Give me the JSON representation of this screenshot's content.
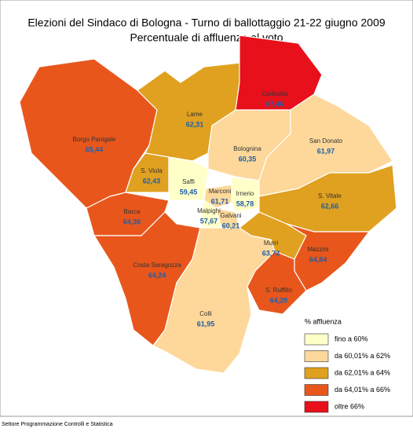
{
  "title": "Elezioni del Sindaco di Bologna - Turno di ballottaggio 21-22 giugno 2009",
  "subtitle": "Percentuale di affluenza al voto",
  "regions": [
    {
      "name": "Borgo Panigale",
      "value": "65,44",
      "color": "#e8561c"
    },
    {
      "name": "Lame",
      "value": "62,31",
      "color": "#e0a020"
    },
    {
      "name": "Corticella",
      "value": "67,46",
      "color": "#e8101a"
    },
    {
      "name": "Bolognina",
      "value": "60,35",
      "color": "#fdd89a"
    },
    {
      "name": "San Donato",
      "value": "61,97",
      "color": "#fdd89a"
    },
    {
      "name": "S. Viola",
      "value": "62,43",
      "color": "#e0a020"
    },
    {
      "name": "Saffi",
      "value": "59,45",
      "color": "#ffffc8"
    },
    {
      "name": "Marconi",
      "value": "61,71",
      "color": "#fdd89a"
    },
    {
      "name": "Irnerio",
      "value": "58,78",
      "color": "#ffffc8"
    },
    {
      "name": "Malpighi",
      "value": "57,67",
      "color": "#ffffc8"
    },
    {
      "name": "Galvani",
      "value": "60,21",
      "color": "#fdd89a"
    },
    {
      "name": "S. Vitale",
      "value": "62,66",
      "color": "#e0a020"
    },
    {
      "name": "Barca",
      "value": "64,36",
      "color": "#e8561c"
    },
    {
      "name": "Costa Saragozza",
      "value": "64,24",
      "color": "#e8561c"
    },
    {
      "name": "Colli",
      "value": "61,95",
      "color": "#fdd89a"
    },
    {
      "name": "Murri",
      "value": "63,73",
      "color": "#e0a020"
    },
    {
      "name": "Mazzini",
      "value": "64,84",
      "color": "#e8561c"
    },
    {
      "name": "S. Ruffillo",
      "value": "64,29",
      "color": "#e8561c"
    }
  ],
  "legend": {
    "title": "% affluenza",
    "items": [
      {
        "label": "fino a 60%",
        "color": "#ffffc8"
      },
      {
        "label": "da 60,01% a 62%",
        "color": "#fdd89a"
      },
      {
        "label": "da 62,01% a 64%",
        "color": "#e0a020"
      },
      {
        "label": "da 64,01% a 66%",
        "color": "#e8561c"
      },
      {
        "label": "oltre 66%",
        "color": "#e8101a"
      }
    ]
  },
  "footer": "Settore Programmazione Controlli e Statistica"
}
